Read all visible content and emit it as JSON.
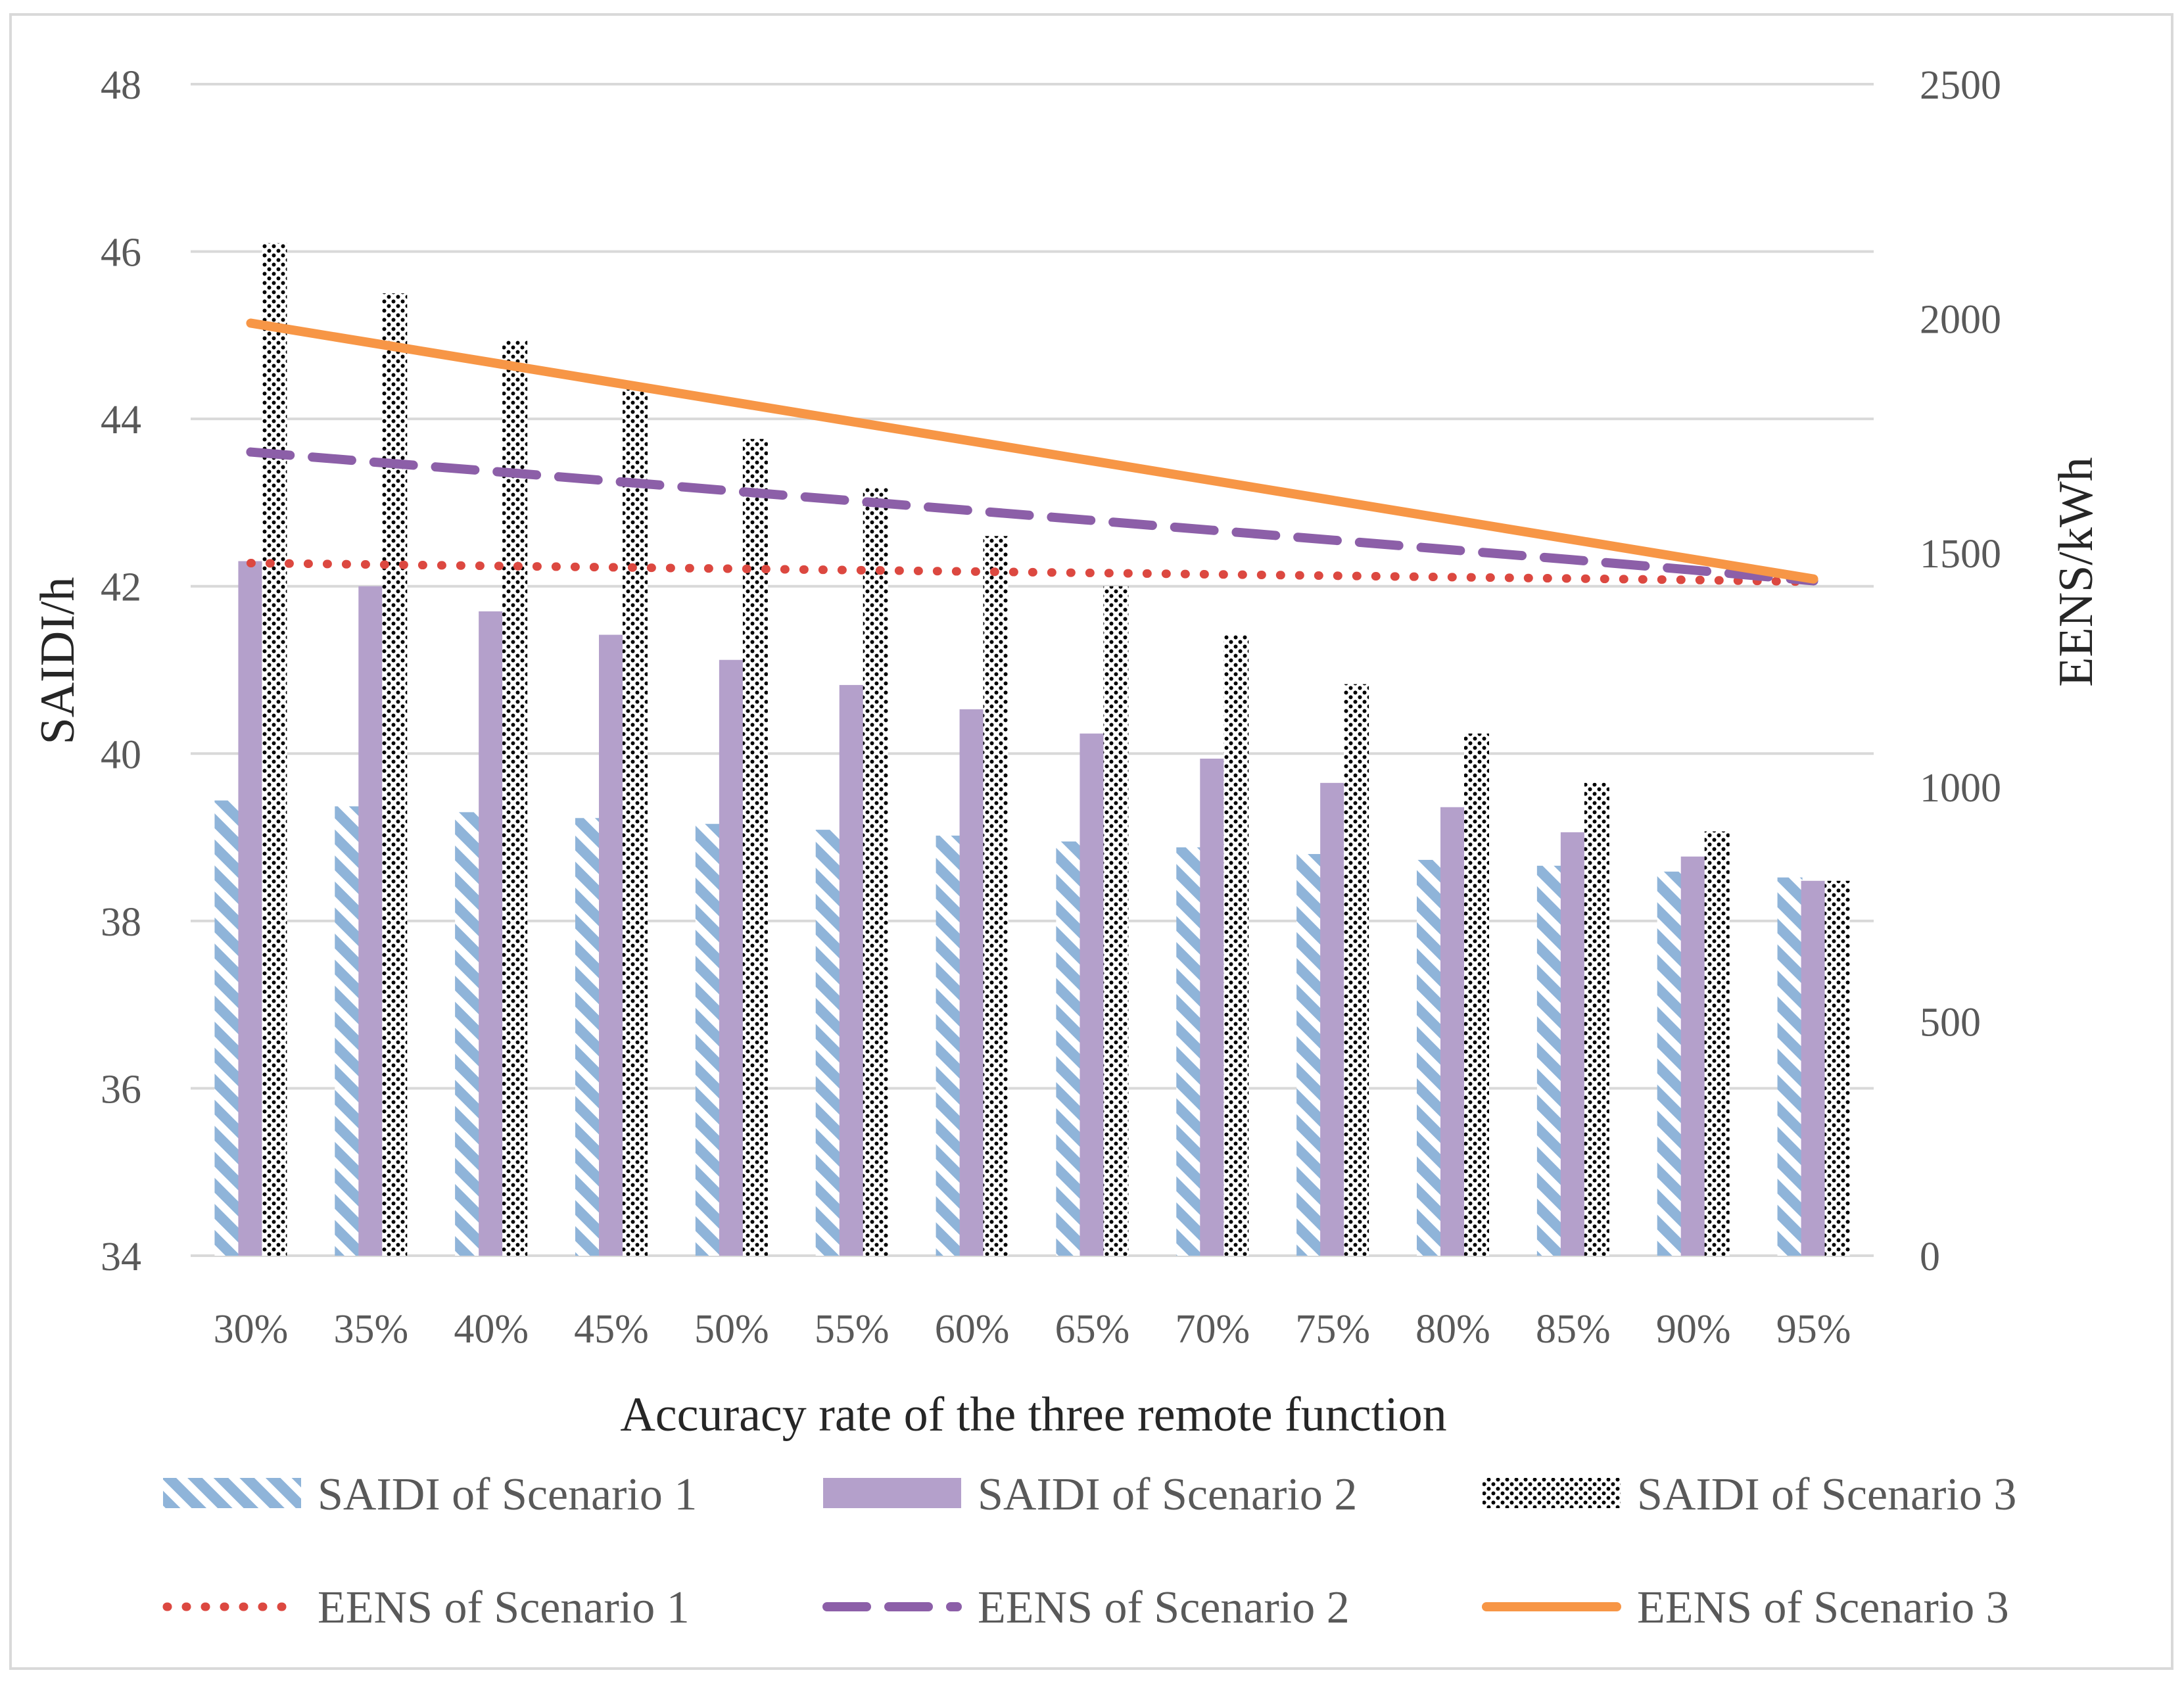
{
  "chart_data": {
    "type": "bar",
    "categories": [
      "30%",
      "35%",
      "40%",
      "45%",
      "50%",
      "55%",
      "60%",
      "65%",
      "70%",
      "75%",
      "80%",
      "85%",
      "90%",
      "95%"
    ],
    "xlabel": "Accuracy rate of the three remote function",
    "ylabel": "SAIDI/h",
    "ylabel_right": "EENS/kWh",
    "ylim": [
      34,
      48
    ],
    "yticks": [
      "34",
      "36",
      "38",
      "40",
      "42",
      "44",
      "46",
      "48"
    ],
    "ylim_right": [
      0,
      2500
    ],
    "yticks_right": [
      "0",
      "500",
      "1000",
      "1500",
      "2000",
      "2500"
    ],
    "grid": true,
    "legend_position": "bottom",
    "series": [
      {
        "name": "SAIDI of Scenario 1",
        "kind": "bar",
        "axis": "left",
        "pattern": "diagonal-stripes",
        "color": "#8fb4d9",
        "values": [
          39.44,
          39.37,
          39.3,
          39.23,
          39.16,
          39.09,
          39.02,
          38.95,
          38.88,
          38.8,
          38.73,
          38.66,
          38.59,
          38.52
        ]
      },
      {
        "name": "SAIDI of Scenario 2",
        "kind": "bar",
        "axis": "left",
        "pattern": "solid",
        "color": "#b4a0cb",
        "values": [
          42.3,
          42.0,
          41.7,
          41.42,
          41.12,
          40.82,
          40.53,
          40.24,
          39.94,
          39.65,
          39.36,
          39.06,
          38.77,
          38.48
        ]
      },
      {
        "name": "SAIDI of Scenario 3",
        "kind": "bar",
        "axis": "left",
        "pattern": "dots",
        "color": "#000000",
        "values": [
          46.1,
          45.5,
          44.94,
          44.35,
          43.76,
          43.18,
          42.6,
          42.0,
          41.42,
          40.83,
          40.24,
          39.65,
          39.07,
          38.48
        ]
      },
      {
        "name": "EENS of Scenario 1",
        "kind": "line",
        "axis": "right",
        "dash": "dotted",
        "color": "#dc4840",
        "values": [
          1478,
          1475,
          1472,
          1469,
          1466,
          1463,
          1460,
          1457,
          1454,
          1451,
          1448,
          1445,
          1442,
          1438
        ]
      },
      {
        "name": "EENS of Scenario 2",
        "kind": "line",
        "axis": "right",
        "dash": "dashed",
        "color": "#8c5fa8",
        "values": [
          1715,
          1694,
          1674,
          1653,
          1632,
          1611,
          1590,
          1569,
          1548,
          1527,
          1506,
          1485,
          1463,
          1440
        ]
      },
      {
        "name": "EENS of Scenario 3",
        "kind": "line",
        "axis": "right",
        "dash": "solid",
        "color": "#f79646",
        "values": [
          1990,
          1948,
          1906,
          1864,
          1822,
          1780,
          1738,
          1696,
          1654,
          1612,
          1570,
          1528,
          1486,
          1444
        ]
      }
    ]
  }
}
